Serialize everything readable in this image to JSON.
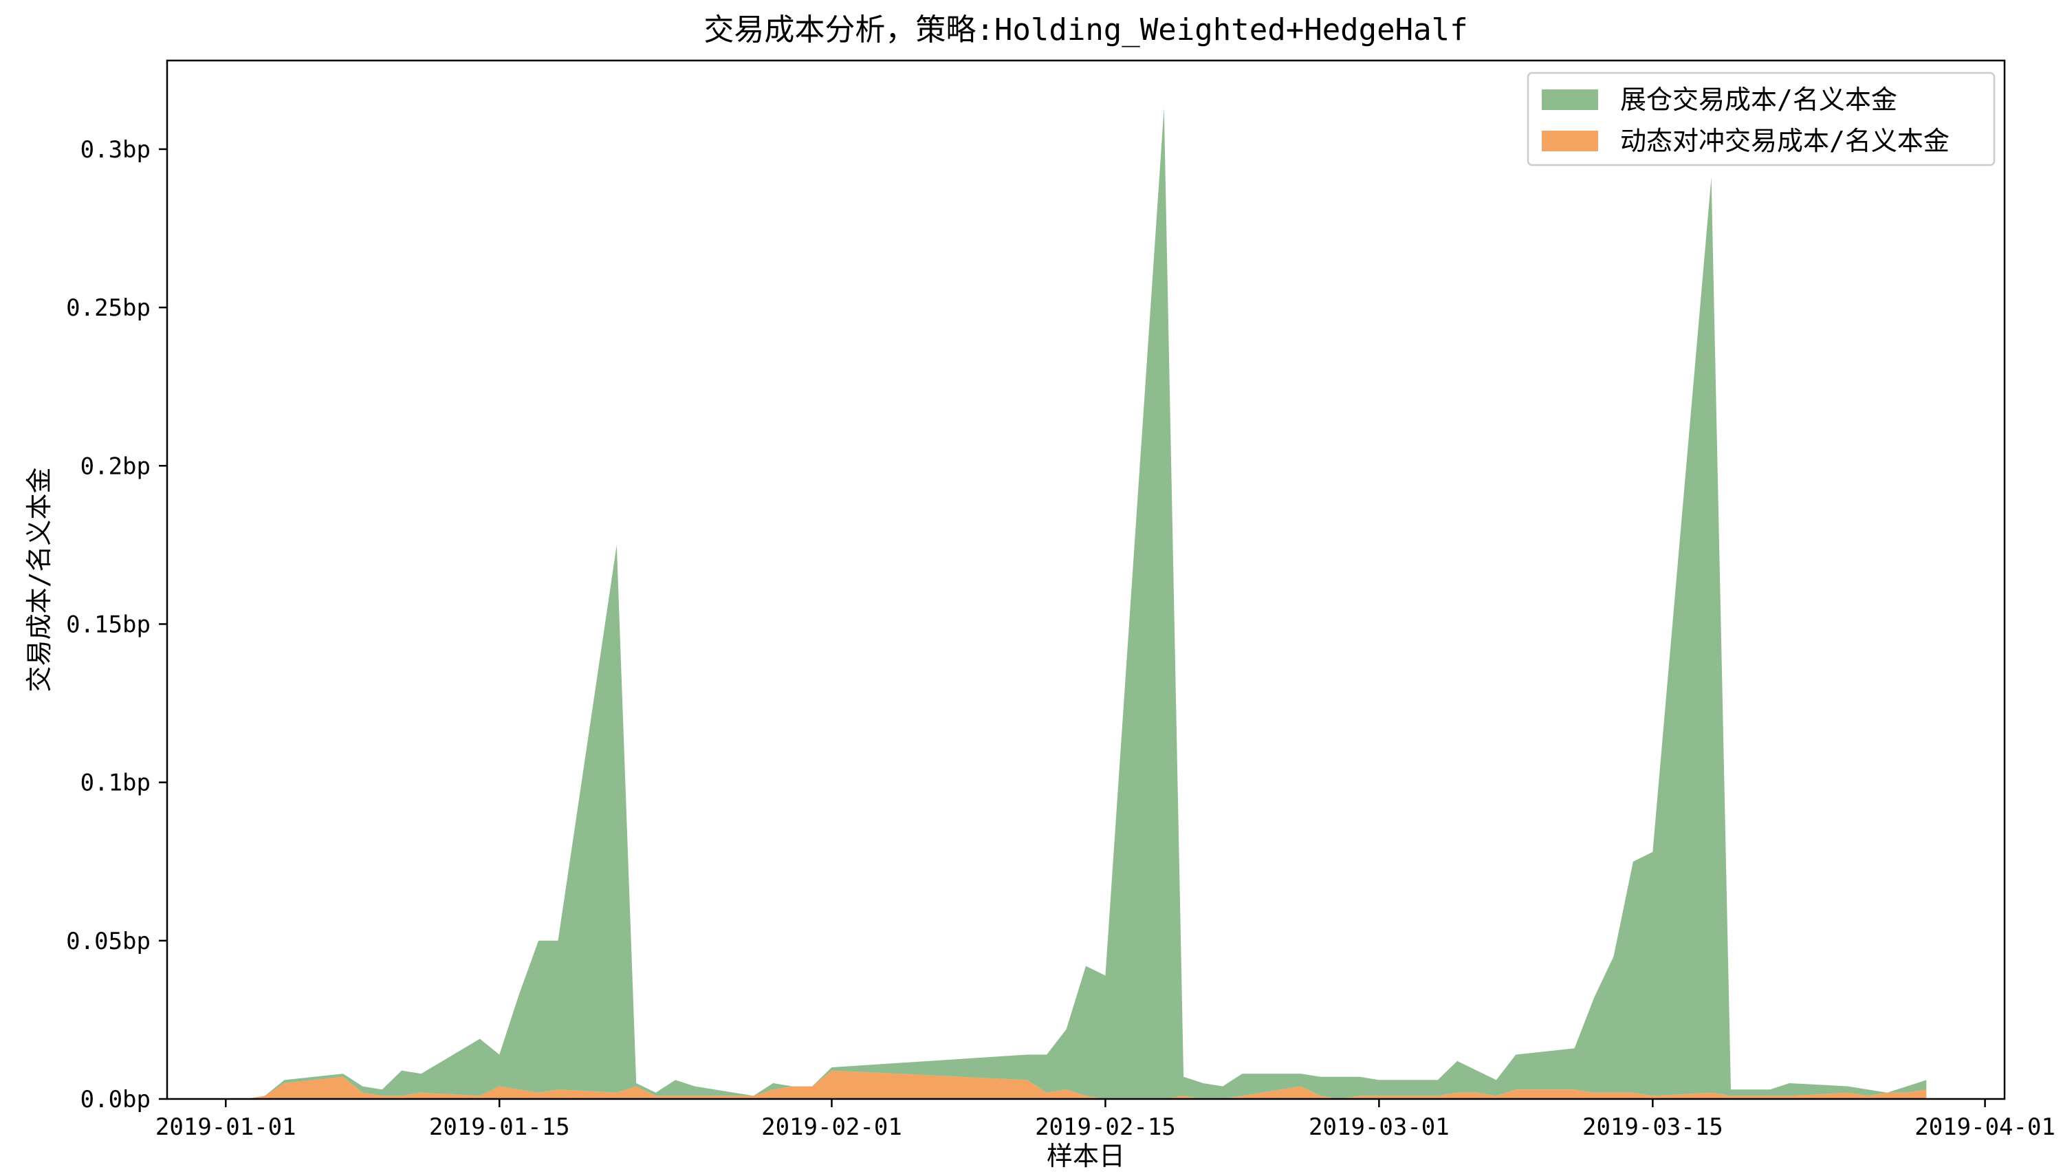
{
  "chart_data": {
    "type": "area",
    "stacked": true,
    "title": "交易成本分析，策略:Holding_Weighted+HedgeHalf",
    "xlabel": "样本日",
    "ylabel": "交易成本/名义本金",
    "x_ticks": [
      "2019-01-01",
      "2019-01-15",
      "2019-02-01",
      "2019-02-15",
      "2019-03-01",
      "2019-03-15",
      "2019-04-01"
    ],
    "y_ticks": [
      "0.0bp",
      "0.05bp",
      "0.1bp",
      "0.15bp",
      "0.2bp",
      "0.25bp",
      "0.3bp"
    ],
    "y_unit": "bp",
    "ylim": [
      0,
      0.328
    ],
    "xlim": [
      "2018-12-29",
      "2019-04-02"
    ],
    "legend_position": "top-right",
    "grid": false,
    "series": [
      {
        "name": "动态对冲交易成本/名义本金",
        "color": "#f4a460",
        "points": [
          [
            "2019-01-01",
            0
          ],
          [
            "2019-01-02",
            0
          ],
          [
            "2019-01-03",
            0.001
          ],
          [
            "2019-01-04",
            0.005
          ],
          [
            "2019-01-07",
            0.007
          ],
          [
            "2019-01-08",
            0.002
          ],
          [
            "2019-01-09",
            0.001
          ],
          [
            "2019-01-10",
            0.001
          ],
          [
            "2019-01-11",
            0.002
          ],
          [
            "2019-01-14",
            0.001
          ],
          [
            "2019-01-15",
            0.004
          ],
          [
            "2019-01-16",
            0.003
          ],
          [
            "2019-01-17",
            0.002
          ],
          [
            "2019-01-18",
            0.003
          ],
          [
            "2019-01-21",
            0.002
          ],
          [
            "2019-01-22",
            0.004
          ],
          [
            "2019-01-23",
            0.001
          ],
          [
            "2019-01-24",
            0.001
          ],
          [
            "2019-01-25",
            0.001
          ],
          [
            "2019-01-28",
            0.001
          ],
          [
            "2019-01-29",
            0.003
          ],
          [
            "2019-01-30",
            0.004
          ],
          [
            "2019-01-31",
            0.004
          ],
          [
            "2019-02-01",
            0.009
          ],
          [
            "2019-02-11",
            0.006
          ],
          [
            "2019-02-12",
            0.002
          ],
          [
            "2019-02-13",
            0.003
          ],
          [
            "2019-02-14",
            0.001
          ],
          [
            "2019-02-15",
            0
          ],
          [
            "2019-02-18",
            0
          ],
          [
            "2019-02-19",
            0.001
          ],
          [
            "2019-02-20",
            0
          ],
          [
            "2019-02-21",
            0
          ],
          [
            "2019-02-22",
            0.001
          ],
          [
            "2019-02-25",
            0.004
          ],
          [
            "2019-02-26",
            0.001
          ],
          [
            "2019-02-27",
            0
          ],
          [
            "2019-02-28",
            0.001
          ],
          [
            "2019-03-01",
            0.001
          ],
          [
            "2019-03-04",
            0.001
          ],
          [
            "2019-03-05",
            0.002
          ],
          [
            "2019-03-06",
            0.002
          ],
          [
            "2019-03-07",
            0.001
          ],
          [
            "2019-03-08",
            0.003
          ],
          [
            "2019-03-11",
            0.003
          ],
          [
            "2019-03-12",
            0.002
          ],
          [
            "2019-03-13",
            0.002
          ],
          [
            "2019-03-14",
            0.002
          ],
          [
            "2019-03-15",
            0.001
          ],
          [
            "2019-03-18",
            0.002
          ],
          [
            "2019-03-19",
            0.001
          ],
          [
            "2019-03-20",
            0.001
          ],
          [
            "2019-03-21",
            0.001
          ],
          [
            "2019-03-22",
            0.001
          ],
          [
            "2019-03-25",
            0.002
          ],
          [
            "2019-03-26",
            0.001
          ],
          [
            "2019-03-27",
            0.002
          ],
          [
            "2019-03-28",
            0.002
          ],
          [
            "2019-03-29",
            0.003
          ]
        ]
      },
      {
        "name": "展仓交易成本/名义本金",
        "color": "#8fbc8f",
        "points": [
          [
            "2019-01-01",
            0
          ],
          [
            "2019-01-02",
            0
          ],
          [
            "2019-01-03",
            0
          ],
          [
            "2019-01-04",
            0.001
          ],
          [
            "2019-01-07",
            0.001
          ],
          [
            "2019-01-08",
            0.002
          ],
          [
            "2019-01-09",
            0.002
          ],
          [
            "2019-01-10",
            0.008
          ],
          [
            "2019-01-11",
            0.006
          ],
          [
            "2019-01-14",
            0.018
          ],
          [
            "2019-01-15",
            0.01
          ],
          [
            "2019-01-16",
            0.03
          ],
          [
            "2019-01-17",
            0.048
          ],
          [
            "2019-01-18",
            0.047
          ],
          [
            "2019-01-21",
            0.173
          ],
          [
            "2019-01-22",
            0.001
          ],
          [
            "2019-01-23",
            0.001
          ],
          [
            "2019-01-24",
            0.005
          ],
          [
            "2019-01-25",
            0.003
          ],
          [
            "2019-01-28",
            0
          ],
          [
            "2019-01-29",
            0.002
          ],
          [
            "2019-01-30",
            0
          ],
          [
            "2019-01-31",
            0
          ],
          [
            "2019-02-01",
            0.001
          ],
          [
            "2019-02-11",
            0.008
          ],
          [
            "2019-02-12",
            0.012
          ],
          [
            "2019-02-13",
            0.019
          ],
          [
            "2019-02-14",
            0.041
          ],
          [
            "2019-02-15",
            0.039
          ],
          [
            "2019-02-18",
            0.313
          ],
          [
            "2019-02-19",
            0.006
          ],
          [
            "2019-02-20",
            0.005
          ],
          [
            "2019-02-21",
            0.004
          ],
          [
            "2019-02-22",
            0.007
          ],
          [
            "2019-02-25",
            0.004
          ],
          [
            "2019-02-26",
            0.006
          ],
          [
            "2019-02-27",
            0.007
          ],
          [
            "2019-02-28",
            0.006
          ],
          [
            "2019-03-01",
            0.005
          ],
          [
            "2019-03-04",
            0.005
          ],
          [
            "2019-03-05",
            0.01
          ],
          [
            "2019-03-06",
            0.007
          ],
          [
            "2019-03-07",
            0.005
          ],
          [
            "2019-03-08",
            0.011
          ],
          [
            "2019-03-11",
            0.013
          ],
          [
            "2019-03-12",
            0.03
          ],
          [
            "2019-03-13",
            0.043
          ],
          [
            "2019-03-14",
            0.073
          ],
          [
            "2019-03-15",
            0.077
          ],
          [
            "2019-03-18",
            0.289
          ],
          [
            "2019-03-19",
            0.002
          ],
          [
            "2019-03-20",
            0.002
          ],
          [
            "2019-03-21",
            0.002
          ],
          [
            "2019-03-22",
            0.004
          ],
          [
            "2019-03-25",
            0.002
          ],
          [
            "2019-03-26",
            0.002
          ],
          [
            "2019-03-27",
            0
          ],
          [
            "2019-03-28",
            0.002
          ],
          [
            "2019-03-29",
            0.003
          ]
        ]
      }
    ]
  }
}
